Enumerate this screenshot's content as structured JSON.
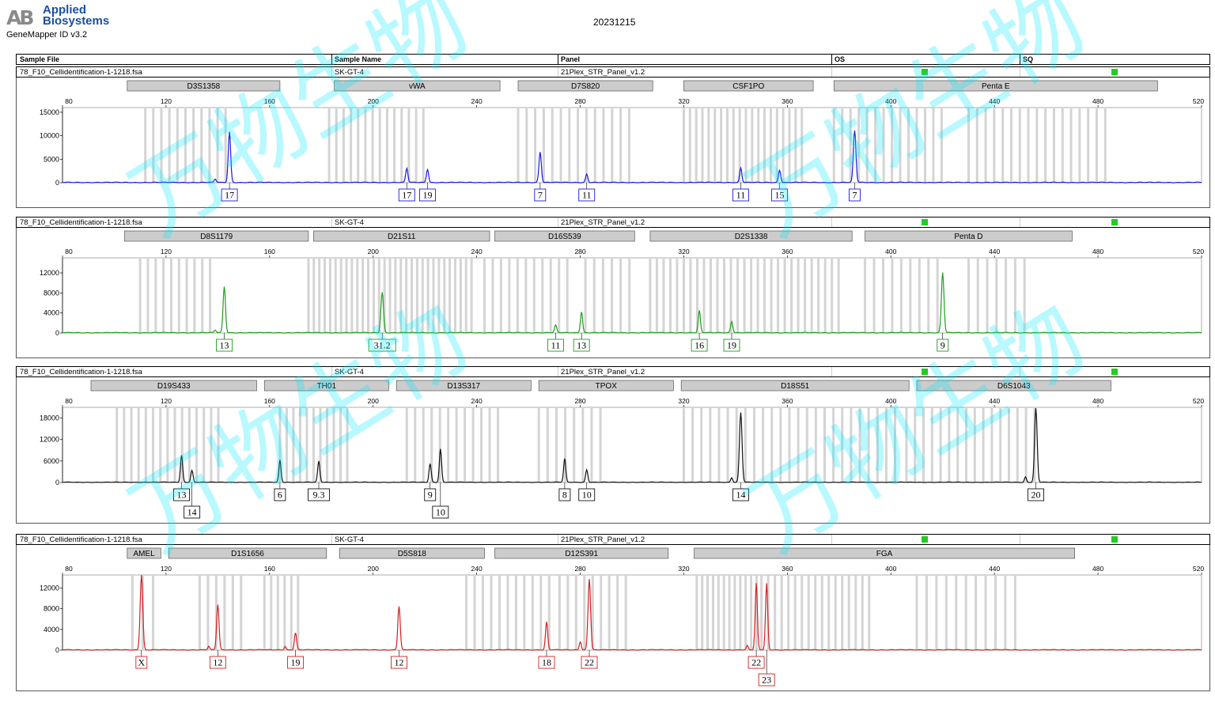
{
  "header": {
    "logo_mark": "AB",
    "logo_line1": "Applied",
    "logo_line2": "Biosystems",
    "software": "GeneMapper ID v3.2",
    "report_date": "20231215",
    "col_sample_file": "Sample File",
    "col_sample_name": "Sample Name",
    "col_panel": "Panel",
    "col_os": "OS",
    "col_sq": "SQ"
  },
  "watermark": "万物生物",
  "colors": {
    "blue": "#1a1ae0",
    "green": "#1e9e1e",
    "black": "#111111",
    "red": "#d42020",
    "bin": "#d4d4d4",
    "marker": "#cccccc",
    "flag": "#22cc22",
    "watermark": "#00e5ff"
  },
  "chart_data": [
    {
      "type": "line",
      "dye": "blue",
      "sample_file": "78_F10_Cellidentification-1-1218.fsa",
      "sample_name": "SK-GT-4",
      "panel": "21Plex_STR_Panel_v1.2",
      "xlim": [
        80,
        520
      ],
      "x_ticks": [
        80,
        120,
        160,
        200,
        240,
        280,
        320,
        360,
        400,
        440,
        480,
        520
      ],
      "ylim": [
        0,
        16000
      ],
      "y_ticks": [
        0,
        5000,
        10000,
        15000
      ],
      "markers": [
        {
          "name": "D3S1358",
          "start": 105,
          "end": 164
        },
        {
          "name": "vWA",
          "start": 185,
          "end": 249
        },
        {
          "name": "D7S820",
          "start": 256,
          "end": 308
        },
        {
          "name": "CSF1PO",
          "start": 320,
          "end": 370
        },
        {
          "name": "Penta E",
          "start": 378,
          "end": 503
        }
      ],
      "bins": [
        [
          112,
          143,
          3.1
        ],
        [
          183,
          220,
          2.8
        ],
        [
          256,
          300,
          3.3
        ],
        [
          320,
          367,
          2.4
        ],
        [
          378,
          420,
          3.2
        ],
        [
          430,
          486,
          3.3
        ]
      ],
      "peaks": [
        {
          "x": 139,
          "h": 700,
          "w": 0.55
        },
        {
          "x": 144.5,
          "h": 10800,
          "w": 0.65
        },
        {
          "x": 213,
          "h": 3000,
          "w": 0.6
        },
        {
          "x": 221,
          "h": 2800,
          "w": 0.6
        },
        {
          "x": 264.5,
          "h": 6500,
          "w": 0.65
        },
        {
          "x": 282.5,
          "h": 1800,
          "w": 0.6
        },
        {
          "x": 342,
          "h": 3100,
          "w": 0.6
        },
        {
          "x": 357,
          "h": 2600,
          "w": 0.6
        },
        {
          "x": 386,
          "h": 11000,
          "w": 0.7
        }
      ],
      "alleles": [
        {
          "x": 144.5,
          "label": "17",
          "row": 0
        },
        {
          "x": 213,
          "label": "17",
          "row": 0
        },
        {
          "x": 221,
          "label": "19",
          "row": 0
        },
        {
          "x": 264.5,
          "label": "7",
          "row": 0
        },
        {
          "x": 282.5,
          "label": "11",
          "row": 0
        },
        {
          "x": 342,
          "label": "11",
          "row": 0
        },
        {
          "x": 357,
          "label": "15",
          "row": 0
        },
        {
          "x": 386,
          "label": "7",
          "row": 0
        }
      ]
    },
    {
      "type": "line",
      "dye": "green",
      "sample_file": "78_F10_Cellidentification-1-1218.fsa",
      "sample_name": "SK-GT-4",
      "panel": "21Plex_STR_Panel_v1.2",
      "xlim": [
        80,
        520
      ],
      "x_ticks": [
        80,
        120,
        160,
        200,
        240,
        280,
        320,
        360,
        400,
        440,
        480,
        520
      ],
      "ylim": [
        0,
        15000
      ],
      "y_ticks": [
        0,
        4000,
        8000,
        12000
      ],
      "markers": [
        {
          "name": "D8S1179",
          "start": 104,
          "end": 175
        },
        {
          "name": "D21S11",
          "start": 177,
          "end": 245
        },
        {
          "name": "D16S539",
          "start": 247,
          "end": 301
        },
        {
          "name": "D2S1338",
          "start": 307,
          "end": 385
        },
        {
          "name": "Penta D",
          "start": 390,
          "end": 470
        }
      ],
      "bins": [
        [
          110,
          137,
          3.0
        ],
        [
          175,
          240,
          2.1
        ],
        [
          243,
          275,
          3.2
        ],
        [
          282,
          300,
          3.4
        ],
        [
          307,
          380,
          2.6
        ],
        [
          390,
          420,
          3.5
        ],
        [
          430,
          452,
          3.6
        ]
      ],
      "peaks": [
        {
          "x": 139,
          "h": 500,
          "w": 0.55
        },
        {
          "x": 142.5,
          "h": 9200,
          "w": 0.65
        },
        {
          "x": 203.5,
          "h": 8100,
          "w": 0.7
        },
        {
          "x": 270.5,
          "h": 1500,
          "w": 0.6
        },
        {
          "x": 280.5,
          "h": 4200,
          "w": 0.6
        },
        {
          "x": 326,
          "h": 4400,
          "w": 0.6
        },
        {
          "x": 338.5,
          "h": 2300,
          "w": 0.6
        },
        {
          "x": 420,
          "h": 12000,
          "w": 0.7
        }
      ],
      "alleles": [
        {
          "x": 142.5,
          "label": "13",
          "row": 0
        },
        {
          "x": 203.5,
          "label": "31.2",
          "row": 0
        },
        {
          "x": 270.5,
          "label": "11",
          "row": 0
        },
        {
          "x": 280.5,
          "label": "13",
          "row": 0
        },
        {
          "x": 326,
          "label": "16",
          "row": 0
        },
        {
          "x": 338.5,
          "label": "19",
          "row": 0
        },
        {
          "x": 420,
          "label": "9",
          "row": 0
        }
      ]
    },
    {
      "type": "line",
      "dye": "black",
      "sample_file": "78_F10_Cellidentification-1-1218.fsa",
      "sample_name": "SK-GT-4",
      "panel": "21Plex_STR_Panel_v1.2",
      "xlim": [
        80,
        520
      ],
      "x_ticks": [
        80,
        120,
        160,
        200,
        240,
        280,
        320,
        360,
        400,
        440,
        480,
        520
      ],
      "ylim": [
        0,
        21000
      ],
      "y_ticks": [
        0,
        6000,
        12000,
        18000
      ],
      "markers": [
        {
          "name": "D19S433",
          "start": 91,
          "end": 155
        },
        {
          "name": "TH01",
          "start": 158,
          "end": 206
        },
        {
          "name": "D13S317",
          "start": 209,
          "end": 261
        },
        {
          "name": "TPOX",
          "start": 264,
          "end": 316
        },
        {
          "name": "D18S51",
          "start": 319,
          "end": 407
        },
        {
          "name": "D6S1043",
          "start": 410,
          "end": 485
        }
      ],
      "bins": [
        [
          101,
          142,
          2.8
        ],
        [
          164,
          190,
          2.6
        ],
        [
          213,
          250,
          3.2
        ],
        [
          264,
          290,
          3.4
        ],
        [
          320,
          402,
          3.4
        ],
        [
          406,
          456,
          3.3
        ]
      ],
      "peaks": [
        {
          "x": 126,
          "h": 7500,
          "w": 0.6
        },
        {
          "x": 130,
          "h": 3300,
          "w": 0.6
        },
        {
          "x": 164,
          "h": 6200,
          "w": 0.6
        },
        {
          "x": 179,
          "h": 5900,
          "w": 0.6
        },
        {
          "x": 222,
          "h": 5200,
          "w": 0.6
        },
        {
          "x": 226,
          "h": 9300,
          "w": 0.6
        },
        {
          "x": 274,
          "h": 6600,
          "w": 0.6
        },
        {
          "x": 282.5,
          "h": 3500,
          "w": 0.6
        },
        {
          "x": 338.5,
          "h": 1300,
          "w": 0.55
        },
        {
          "x": 342,
          "h": 19500,
          "w": 0.7
        },
        {
          "x": 452,
          "h": 1500,
          "w": 0.55
        },
        {
          "x": 456,
          "h": 20700,
          "w": 0.7
        }
      ],
      "alleles": [
        {
          "x": 126,
          "label": "13",
          "row": 0
        },
        {
          "x": 130,
          "label": "14",
          "row": 1
        },
        {
          "x": 164,
          "label": "6",
          "row": 0
        },
        {
          "x": 179,
          "label": "9.3",
          "row": 0
        },
        {
          "x": 222,
          "label": "9",
          "row": 0
        },
        {
          "x": 226,
          "label": "10",
          "row": 1
        },
        {
          "x": 274,
          "label": "8",
          "row": 0
        },
        {
          "x": 282.5,
          "label": "10",
          "row": 0
        },
        {
          "x": 342,
          "label": "14",
          "row": 0
        },
        {
          "x": 456,
          "label": "20",
          "row": 0
        }
      ]
    },
    {
      "type": "line",
      "dye": "red",
      "sample_file": "78_F10_Cellidentification-1-1218.fsa",
      "sample_name": "SK-GT-4",
      "panel": "21Plex_STR_Panel_v1.2",
      "xlim": [
        80,
        520
      ],
      "x_ticks": [
        80,
        120,
        160,
        200,
        240,
        280,
        320,
        360,
        400,
        440,
        480,
        520
      ],
      "ylim": [
        0,
        14500
      ],
      "y_ticks": [
        0,
        4000,
        8000,
        12000
      ],
      "markers": [
        {
          "name": "AMEL",
          "start": 105,
          "end": 118
        },
        {
          "name": "D1S1656",
          "start": 121,
          "end": 182
        },
        {
          "name": "D5S818",
          "start": 187,
          "end": 243
        },
        {
          "name": "D12S391",
          "start": 247,
          "end": 314
        },
        {
          "name": "FGA",
          "start": 324,
          "end": 471
        }
      ],
      "bins": [
        [
          107,
          117,
          4.0
        ],
        [
          133,
          152,
          3.2
        ],
        [
          158,
          173,
          2.6
        ],
        [
          236,
          270,
          3.2
        ],
        [
          272,
          300,
          3.2
        ],
        [
          325,
          350,
          2.1
        ],
        [
          350,
          392,
          2.6
        ],
        [
          410,
          451,
          3.8
        ]
      ],
      "peaks": [
        {
          "x": 110.5,
          "h": 14500,
          "w": 0.7
        },
        {
          "x": 136.5,
          "h": 700,
          "w": 0.5
        },
        {
          "x": 140,
          "h": 8700,
          "w": 0.65
        },
        {
          "x": 166,
          "h": 700,
          "w": 0.5
        },
        {
          "x": 170,
          "h": 3300,
          "w": 0.6
        },
        {
          "x": 210,
          "h": 8400,
          "w": 0.65
        },
        {
          "x": 267,
          "h": 5400,
          "w": 0.6
        },
        {
          "x": 280,
          "h": 1600,
          "w": 0.55
        },
        {
          "x": 283.5,
          "h": 13700,
          "w": 0.7
        },
        {
          "x": 344.5,
          "h": 800,
          "w": 0.5
        },
        {
          "x": 348,
          "h": 12800,
          "w": 0.6
        },
        {
          "x": 352,
          "h": 12800,
          "w": 0.6
        }
      ],
      "alleles": [
        {
          "x": 110.5,
          "label": "X",
          "row": 0
        },
        {
          "x": 140,
          "label": "12",
          "row": 0
        },
        {
          "x": 170,
          "label": "19",
          "row": 0
        },
        {
          "x": 210,
          "label": "12",
          "row": 0
        },
        {
          "x": 267,
          "label": "18",
          "row": 0
        },
        {
          "x": 283.5,
          "label": "22",
          "row": 0
        },
        {
          "x": 348,
          "label": "22",
          "row": 0
        },
        {
          "x": 352,
          "label": "23",
          "row": 1
        }
      ]
    }
  ]
}
